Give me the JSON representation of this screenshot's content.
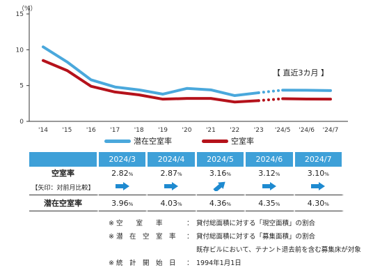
{
  "chart_data": {
    "type": "line",
    "unit_label": "（%）",
    "categories": [
      "'14",
      "'15",
      "'16",
      "'17",
      "'18",
      "'19",
      "'20",
      "'21",
      "'22",
      "'23",
      "'24/5",
      "'24/6",
      "'24/7"
    ],
    "y_ticks": [
      "0",
      "5",
      "10",
      "15"
    ],
    "ylim": [
      0,
      15
    ],
    "series": [
      {
        "name": "潜在空室率",
        "color": "#4aa8dc",
        "values": [
          10.4,
          8.3,
          5.8,
          4.8,
          4.4,
          3.8,
          4.6,
          4.4,
          3.6,
          4.0,
          4.36,
          4.35,
          4.3
        ]
      },
      {
        "name": "空室率",
        "color": "#b5121b",
        "values": [
          8.5,
          7.1,
          4.9,
          4.1,
          3.7,
          3.1,
          3.2,
          3.2,
          2.7,
          2.9,
          3.16,
          3.12,
          3.1
        ]
      }
    ],
    "annotation": "【 直近3カ月 】"
  },
  "table": {
    "headers": [
      "2024/3",
      "2024/4",
      "2024/5",
      "2024/6",
      "2024/7"
    ],
    "rows": [
      {
        "label": "空室率",
        "values": [
          "2.82",
          "2.87",
          "3.16",
          "3.12",
          "3.10"
        ]
      },
      {
        "label": "潜在空室率",
        "values": [
          "3.96",
          "4.03",
          "4.36",
          "4.35",
          "4.30"
        ]
      }
    ],
    "percent": "%",
    "arrow_label": "【矢印：対前月比較】",
    "arrows": [
      "right",
      "right",
      "up-right",
      "right",
      "right"
    ],
    "arrow_color": "#1e8ad0"
  },
  "notes": [
    {
      "key": "※ 空　　室　　率",
      "val": "貸付総面積に対する「現空面積」の割合"
    },
    {
      "key": "※ 潜　在　空　室　率",
      "val": "貸付総面積に対する「募集面積」の割合"
    },
    {
      "key": "",
      "val": "既存ビルにおいて、テナント退去前を含む募集床が対象"
    },
    {
      "key": "※ 統　計　開　始　日",
      "val": "1994年1月1日"
    }
  ],
  "note_separator": "："
}
